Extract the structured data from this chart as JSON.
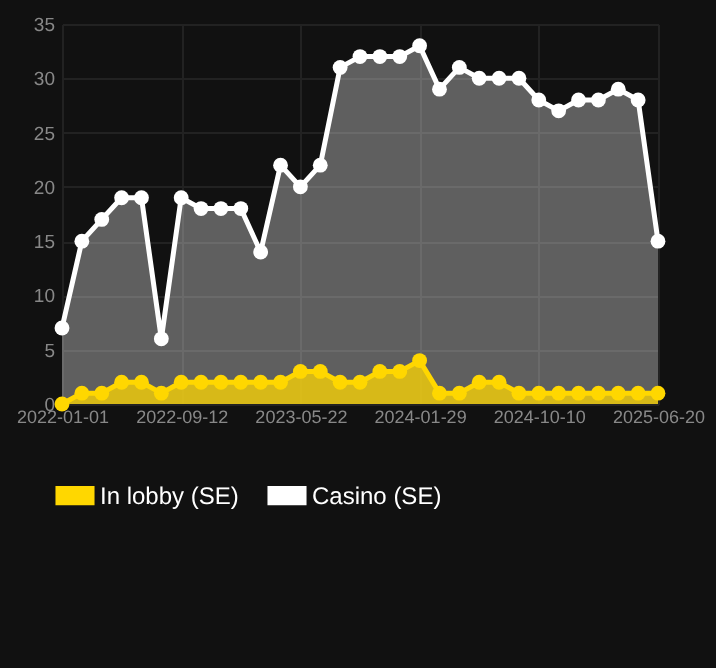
{
  "chart_data": {
    "type": "area",
    "categories": [
      "2022-01-01",
      null,
      null,
      null,
      null,
      null,
      "2022-09-12",
      null,
      null,
      null,
      null,
      null,
      "2023-05-22",
      null,
      null,
      null,
      null,
      null,
      "2024-01-29",
      null,
      null,
      null,
      null,
      null,
      "2024-10-10",
      null,
      null,
      null,
      null,
      null,
      "2025-06-20"
    ],
    "series": [
      {
        "name": "In lobby (SE)",
        "color": "#ffd700",
        "values": [
          0,
          1,
          1,
          2,
          2,
          1,
          2,
          2,
          2,
          2,
          2,
          2,
          3,
          3,
          2,
          2,
          3,
          3,
          4,
          1,
          1,
          2,
          2,
          1,
          1,
          1,
          1,
          1,
          1,
          1,
          1
        ]
      },
      {
        "name": "Casino (SE)",
        "color": "#ffffff",
        "values": [
          7,
          15,
          17,
          19,
          19,
          6,
          19,
          18,
          18,
          18,
          14,
          22,
          20,
          22,
          31,
          32,
          32,
          32,
          33,
          29,
          31,
          30,
          30,
          30,
          28,
          27,
          28,
          28,
          29,
          28,
          15
        ]
      }
    ],
    "ylim": [
      0,
      35
    ],
    "yticks": [
      0,
      5,
      10,
      15,
      20,
      25,
      30,
      35
    ],
    "grid": true,
    "legend": "bottom",
    "marker": "circle"
  }
}
